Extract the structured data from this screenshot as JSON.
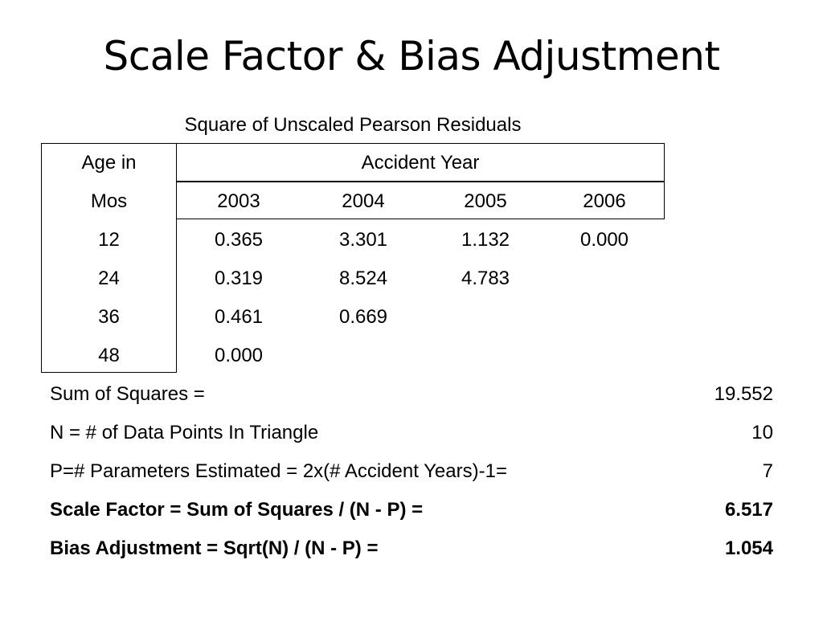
{
  "title": "Scale Factor & Bias Adjustment",
  "table": {
    "caption": "Square of Unscaled Pearson Residuals",
    "age_header_line1": "Age in",
    "age_header_line2": "Mos",
    "accident_year_header": "Accident Year",
    "years": [
      "2003",
      "2004",
      "2005",
      "2006"
    ],
    "rows": [
      {
        "age": "12",
        "values": [
          "0.365",
          "3.301",
          "1.132",
          "0.000"
        ]
      },
      {
        "age": "24",
        "values": [
          "0.319",
          "8.524",
          "4.783",
          ""
        ]
      },
      {
        "age": "36",
        "values": [
          "0.461",
          "0.669",
          "",
          ""
        ]
      },
      {
        "age": "48",
        "values": [
          "0.000",
          "",
          "",
          ""
        ]
      }
    ]
  },
  "summary": [
    {
      "label": "Sum of Squares =",
      "value": "19.552",
      "bold": false
    },
    {
      "label": "N = # of Data Points In Triangle",
      "value": "10",
      "bold": false
    },
    {
      "label": "P=# Parameters Estimated = 2x(# Accident Years)-1=",
      "value": "7",
      "bold": false
    },
    {
      "label": "Scale Factor = Sum of Squares / (N - P) =",
      "value": "6.517",
      "bold": true
    },
    {
      "label": "Bias Adjustment = Sqrt(N) / (N - P) =",
      "value": "1.054",
      "bold": true
    }
  ]
}
